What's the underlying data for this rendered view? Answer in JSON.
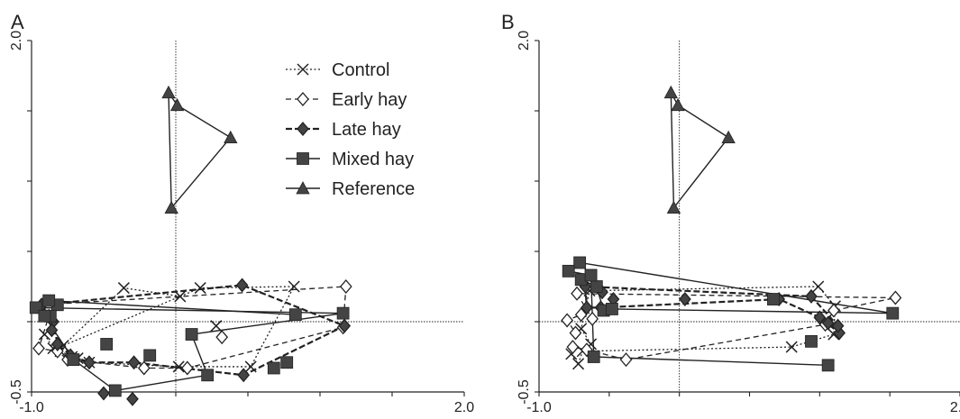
{
  "chart_data": [
    {
      "type": "scatter",
      "panel": "A",
      "xlim": [
        -1.0,
        2.0
      ],
      "ylim": [
        -0.5,
        2.0
      ],
      "xticks": [
        "-1.0",
        "2.0"
      ],
      "yticks": [
        "-0.5",
        "2.0"
      ],
      "grid": false,
      "legend": {
        "placement": "top-center",
        "entries": [
          {
            "label": "Control",
            "marker": "x",
            "line": "dotted"
          },
          {
            "label": "Early hay",
            "marker": "diamond-open",
            "line": "dashed"
          },
          {
            "label": "Late hay",
            "marker": "diamond-filled",
            "line": "dashed-bold"
          },
          {
            "label": "Mixed hay",
            "marker": "square",
            "line": "solid"
          },
          {
            "label": "Reference",
            "marker": "triangle",
            "line": "solid"
          }
        ]
      },
      "series": [
        {
          "name": "Reference",
          "marker": "triangle",
          "line": "solid",
          "closed": true,
          "points": [
            [
              -0.05,
              1.63
            ],
            [
              0.01,
              1.54
            ],
            [
              0.38,
              1.31
            ],
            [
              -0.03,
              0.81
            ]
          ]
        },
        {
          "name": "Control",
          "marker": "x",
          "line": "dotted",
          "closed": false,
          "points": [
            [
              -0.91,
              -0.09
            ],
            [
              -0.85,
              -0.19
            ],
            [
              -0.8,
              -0.21
            ],
            [
              -0.72,
              -0.25
            ],
            [
              -0.68,
              -0.26
            ],
            [
              -0.6,
              -0.29
            ],
            [
              0.02,
              -0.32
            ],
            [
              0.52,
              -0.32
            ],
            [
              0.82,
              0.25
            ],
            [
              0.17,
              0.24
            ],
            [
              -0.78,
              -0.17
            ],
            [
              -0.36,
              0.24
            ],
            [
              0.03,
              0.18
            ]
          ]
        },
        {
          "name": "Control",
          "marker": "x",
          "line": "none",
          "closed": false,
          "points": [
            [
              0.28,
              -0.03
            ]
          ]
        },
        {
          "name": "Early hay",
          "marker": "diamond-open",
          "line": "dashed",
          "closed": true,
          "points": [
            [
              -0.93,
              0.12
            ],
            [
              -0.88,
              0.04
            ],
            [
              -0.95,
              -0.19
            ],
            [
              -0.82,
              -0.21
            ],
            [
              -0.75,
              -0.27
            ],
            [
              -0.22,
              -0.33
            ],
            [
              0.08,
              -0.33
            ],
            [
              1.16,
              -0.04
            ],
            [
              1.18,
              0.25
            ]
          ]
        },
        {
          "name": "Early hay",
          "marker": "diamond-open",
          "line": "none",
          "closed": false,
          "points": [
            [
              0.32,
              -0.11
            ]
          ]
        },
        {
          "name": "Late hay",
          "marker": "diamond-filled",
          "line": "dashed-bold",
          "closed": true,
          "points": [
            [
              -0.93,
              0.12
            ],
            [
              -0.85,
              0.0
            ],
            [
              -0.82,
              -0.16
            ],
            [
              -0.73,
              -0.24
            ],
            [
              -0.6,
              -0.29
            ],
            [
              -0.29,
              -0.29
            ],
            [
              0.47,
              -0.38
            ],
            [
              1.17,
              -0.03
            ],
            [
              0.46,
              0.26
            ]
          ]
        },
        {
          "name": "Late hay",
          "marker": "diamond-filled",
          "line": "none",
          "closed": false,
          "points": [
            [
              -0.86,
              -0.06
            ],
            [
              -0.5,
              -0.51
            ],
            [
              -0.3,
              -0.55
            ]
          ]
        },
        {
          "name": "Mixed hay",
          "marker": "square",
          "line": "solid",
          "closed": true,
          "points": [
            [
              -0.97,
              0.1
            ],
            [
              -0.82,
              0.12
            ],
            [
              -0.87,
              0.04
            ],
            [
              -0.91,
              0.04
            ],
            [
              -0.71,
              -0.27
            ],
            [
              -0.42,
              -0.49
            ],
            [
              0.22,
              -0.38
            ],
            [
              0.11,
              -0.09
            ],
            [
              1.16,
              0.06
            ]
          ]
        },
        {
          "name": "Mixed hay",
          "marker": "square",
          "line": "solid",
          "closed": false,
          "points": [
            [
              -0.88,
              0.15
            ],
            [
              0.83,
              0.05
            ]
          ]
        },
        {
          "name": "Mixed hay",
          "marker": "square",
          "line": "none",
          "closed": false,
          "points": [
            [
              -0.48,
              -0.16
            ],
            [
              -0.18,
              -0.24
            ],
            [
              0.68,
              -0.33
            ],
            [
              0.77,
              -0.29
            ]
          ]
        }
      ]
    },
    {
      "type": "scatter",
      "panel": "B",
      "xlim": [
        -1.0,
        2.0
      ],
      "ylim": [
        -0.5,
        2.0
      ],
      "xticks": [
        "-1.0",
        "2.0"
      ],
      "yticks": [
        "-0.5",
        "2.0"
      ],
      "grid": false,
      "series": [
        {
          "name": "Reference",
          "marker": "triangle",
          "line": "solid",
          "closed": true,
          "points": [
            [
              -0.06,
              1.63
            ],
            [
              -0.01,
              1.54
            ],
            [
              0.35,
              1.31
            ],
            [
              -0.04,
              0.81
            ]
          ]
        },
        {
          "name": "Control",
          "marker": "x",
          "line": "dotted",
          "closed": false,
          "points": [
            [
              -0.77,
              -0.23
            ],
            [
              -0.72,
              -0.3
            ],
            [
              -0.69,
              -0.21
            ],
            [
              0.8,
              -0.18
            ],
            [
              1.1,
              -0.09
            ],
            [
              1.11,
              0.11
            ],
            [
              0.99,
              0.25
            ],
            [
              -0.64,
              0.22
            ],
            [
              -0.7,
              -0.05
            ],
            [
              -0.63,
              -0.16
            ]
          ]
        },
        {
          "name": "Early hay",
          "marker": "diamond-open",
          "line": "dashed",
          "closed": true,
          "points": [
            [
              -0.73,
              0.2
            ],
            [
              -0.62,
              0.02
            ],
            [
              -0.7,
              0.05
            ],
            [
              -0.8,
              0.01
            ],
            [
              -0.74,
              -0.08
            ],
            [
              -0.76,
              -0.18
            ],
            [
              -0.66,
              -0.2
            ],
            [
              -0.38,
              -0.27
            ],
            [
              1.04,
              -0.02
            ],
            [
              1.1,
              0.08
            ],
            [
              1.54,
              0.17
            ]
          ]
        },
        {
          "name": "Late hay",
          "marker": "diamond-filled",
          "line": "dashed-bold",
          "closed": true,
          "points": [
            [
              -0.67,
              0.25
            ],
            [
              -0.66,
              0.1
            ],
            [
              -0.56,
              0.1
            ],
            [
              0.71,
              0.16
            ],
            [
              1.0,
              0.03
            ],
            [
              1.14,
              -0.08
            ],
            [
              1.13,
              -0.03
            ],
            [
              0.94,
              0.18
            ]
          ]
        },
        {
          "name": "Late hay",
          "marker": "diamond-filled",
          "line": "none",
          "closed": false,
          "points": [
            [
              -0.55,
              0.21
            ],
            [
              -0.47,
              0.16
            ],
            [
              0.04,
              0.16
            ],
            [
              1.06,
              -0.01
            ]
          ]
        },
        {
          "name": "Mixed hay",
          "marker": "square",
          "line": "solid",
          "closed": true,
          "points": [
            [
              -0.63,
              0.33
            ],
            [
              -0.7,
              0.3
            ],
            [
              -0.59,
              0.25
            ],
            [
              -0.54,
              0.08
            ],
            [
              -0.48,
              0.09
            ],
            [
              1.52,
              0.06
            ],
            [
              -0.71,
              0.42
            ]
          ]
        },
        {
          "name": "Mixed hay",
          "marker": "square",
          "line": "solid",
          "closed": false,
          "points": [
            [
              -0.79,
              0.36
            ],
            [
              -0.63,
              0.33
            ],
            [
              -0.61,
              -0.25
            ],
            [
              1.06,
              -0.31
            ]
          ]
        },
        {
          "name": "Mixed hay",
          "marker": "square",
          "line": "none",
          "closed": false,
          "points": [
            [
              0.67,
              0.16
            ],
            [
              0.94,
              -0.14
            ]
          ]
        }
      ]
    }
  ],
  "colors": {
    "ink": "#222222",
    "marker_fill": "#444444",
    "background": "#ffffff"
  }
}
